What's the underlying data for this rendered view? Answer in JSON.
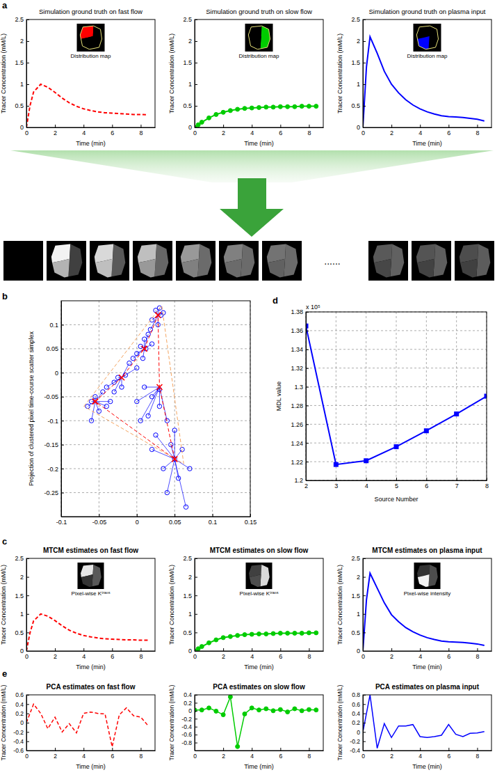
{
  "chart_data": [
    {
      "type": "line",
      "panel_label": "a",
      "title": "Simulation ground truth on fast flow",
      "inset_label": "Distribution map",
      "x_label": "Time (min)",
      "y_label": "Tracer Concentration (mM/L)",
      "x": [
        0,
        0.25,
        0.5,
        1,
        1.5,
        2,
        2.5,
        3,
        3.5,
        4,
        4.5,
        5,
        5.5,
        6,
        6.5,
        7,
        7.5,
        8,
        8.5
      ],
      "xlim": [
        0,
        9
      ],
      "xticks": [
        0,
        2,
        4,
        6,
        8
      ],
      "ylim": [
        0,
        2.5
      ],
      "yticks": [
        0,
        0.5,
        1,
        1.5,
        2,
        2.5
      ],
      "series": [
        {
          "color": "#ff0000",
          "line_style": "dashed",
          "values": [
            0,
            0.5,
            0.82,
            1.0,
            0.93,
            0.81,
            0.68,
            0.57,
            0.49,
            0.43,
            0.39,
            0.36,
            0.34,
            0.33,
            0.32,
            0.31,
            0.3,
            0.3,
            0.29
          ]
        }
      ]
    },
    {
      "type": "line",
      "title": "Simulation ground truth on slow flow",
      "inset_label": "Distribution map",
      "x_label": "Time (min)",
      "y_label": "Tracer Concentration (mM/L)",
      "x": [
        0,
        0.25,
        0.5,
        1,
        1.5,
        2,
        2.5,
        3,
        3.5,
        4,
        4.5,
        5,
        5.5,
        6,
        6.5,
        7,
        7.5,
        8,
        8.5
      ],
      "xlim": [
        0,
        9
      ],
      "xticks": [
        0,
        2,
        4,
        6,
        8
      ],
      "ylim": [
        0,
        2.5
      ],
      "yticks": [
        0,
        0.5,
        1,
        1.5,
        2,
        2.5
      ],
      "series": [
        {
          "color": "#00cc00",
          "line_style": "solid",
          "marker": "circle",
          "values": [
            0,
            0.06,
            0.12,
            0.22,
            0.3,
            0.35,
            0.39,
            0.42,
            0.44,
            0.45,
            0.46,
            0.47,
            0.47,
            0.48,
            0.48,
            0.48,
            0.49,
            0.49,
            0.49
          ]
        }
      ]
    },
    {
      "type": "line",
      "title": "Simulation ground truth on plasma input",
      "inset_label": "Distribution map",
      "x_label": "Time (min)",
      "y_label": "Tracer Concentration (mM/L)",
      "x": [
        0,
        0.25,
        0.5,
        1,
        1.5,
        2,
        2.5,
        3,
        3.5,
        4,
        4.5,
        5,
        5.5,
        6,
        6.5,
        7,
        7.5,
        8,
        8.5
      ],
      "xlim": [
        0,
        9
      ],
      "xticks": [
        0,
        2,
        4,
        6,
        8
      ],
      "ylim": [
        0,
        2.5
      ],
      "yticks": [
        0,
        0.5,
        1,
        1.5,
        2,
        2.5
      ],
      "series": [
        {
          "color": "#0000ff",
          "line_style": "solid",
          "values": [
            0,
            1.4,
            2.1,
            1.72,
            1.3,
            1.0,
            0.8,
            0.64,
            0.52,
            0.43,
            0.36,
            0.31,
            0.27,
            0.25,
            0.24,
            0.23,
            0.21,
            0.19,
            0.15
          ]
        }
      ]
    },
    {
      "type": "scatter",
      "panel_label": "b",
      "y_label": "Projection of clustered pixel time-course scatter simplex",
      "xlim": [
        -0.1,
        0.15
      ],
      "xticks": [
        -0.1,
        -0.05,
        0,
        0.05,
        0.1,
        0.15
      ],
      "ylim": [
        -0.3,
        0.15
      ],
      "yticks": [
        -0.25,
        -0.2,
        -0.15,
        -0.1,
        -0.05,
        0,
        0.05,
        0.1
      ],
      "grid": true,
      "series": [
        {
          "type": "scatter",
          "color": "#0000ff",
          "marker": "open_circle",
          "x": [
            0.03,
            0.025,
            0.032,
            0.02,
            0.028,
            0.015,
            0.01,
            0.005,
            0.012,
            0,
            -0.005,
            0.008,
            0.02,
            0.035,
            0.018,
            -0.01,
            0,
            -0.06,
            -0.055,
            -0.065,
            -0.045,
            -0.04,
            -0.03,
            -0.025,
            -0.05,
            -0.06,
            -0.035,
            -0.02,
            -0.015,
            -0.04,
            -0.03,
            0.01,
            0.02,
            0.03,
            0,
            0.015,
            0.04,
            0.05,
            0.045,
            0.05,
            0.06,
            0.035,
            0.055,
            0.07,
            0.065,
            0.04,
            0.025,
            0.005,
            0.03,
            0.02
          ],
          "values": [
            0.135,
            0.13,
            0.12,
            0.11,
            0.1,
            0.08,
            0.07,
            0.055,
            0.05,
            0.04,
            0.03,
            0.03,
            0.06,
            0.125,
            0.09,
            0.02,
            0.01,
            -0.06,
            -0.05,
            -0.07,
            -0.04,
            -0.03,
            -0.02,
            -0.01,
            -0.08,
            -0.1,
            -0.06,
            -0.03,
            -0.005,
            -0.07,
            -0.04,
            -0.03,
            -0.05,
            -0.07,
            -0.06,
            -0.09,
            -0.1,
            -0.12,
            -0.15,
            -0.18,
            -0.16,
            -0.2,
            -0.22,
            -0.2,
            -0.28,
            -0.25,
            -0.13,
            -0.1,
            -0.035,
            -0.16
          ]
        },
        {
          "type": "line",
          "color": "#f4a460",
          "line_style": "dashed",
          "x": [
            -0.07,
            0.033,
            0.062,
            -0.07
          ],
          "values": [
            -0.07,
            0.14,
            -0.19,
            -0.07
          ]
        },
        {
          "type": "line",
          "color": "#ff0000",
          "line_style": "dashed",
          "marker": "cross",
          "x": [
            -0.055,
            -0.02,
            0.01,
            0.028,
            0.03,
            0.05,
            -0.055
          ],
          "values": [
            -0.06,
            -0.01,
            0.05,
            0.12,
            -0.03,
            -0.18,
            -0.06
          ]
        }
      ]
    },
    {
      "type": "line",
      "panel_label": "d",
      "y_label": "MDL value",
      "x_label": "Source Number",
      "axis_multiplier": "x 10⁵",
      "x": [
        2,
        3,
        4,
        5,
        6,
        7,
        8
      ],
      "xlim": [
        2,
        8
      ],
      "xticks": [
        2,
        3,
        4,
        5,
        6,
        7,
        8
      ],
      "ylim": [
        1.2,
        1.38
      ],
      "yticks": [
        1.2,
        1.22,
        1.24,
        1.26,
        1.28,
        1.3,
        1.32,
        1.34,
        1.36,
        1.38
      ],
      "grid": true,
      "series": [
        {
          "color": "#0000ff",
          "line_style": "solid",
          "marker": "square",
          "values": [
            1.365,
            1.217,
            1.221,
            1.236,
            1.253,
            1.271,
            1.29
          ]
        }
      ]
    },
    {
      "type": "line",
      "panel_label": "c",
      "title": "MTCM estimates on fast flow",
      "inset_label": "Pixel-wise Kᵗʳᵃⁿˢ",
      "x_label": "Time (min)",
      "y_label": "Tracer Concentration (mM/L)",
      "x": [
        0,
        0.25,
        0.5,
        1,
        1.5,
        2,
        2.5,
        3,
        3.5,
        4,
        4.5,
        5,
        5.5,
        6,
        6.5,
        7,
        7.5,
        8,
        8.5
      ],
      "xlim": [
        0,
        9
      ],
      "xticks": [
        0,
        2,
        4,
        6,
        8
      ],
      "ylim": [
        0,
        2.5
      ],
      "yticks": [
        0,
        0.5,
        1,
        1.5,
        2,
        2.5
      ],
      "series": [
        {
          "color": "#ff0000",
          "line_style": "dashed",
          "values": [
            0,
            0.49,
            0.81,
            1.0,
            0.94,
            0.82,
            0.68,
            0.56,
            0.48,
            0.42,
            0.38,
            0.35,
            0.33,
            0.32,
            0.31,
            0.3,
            0.3,
            0.29,
            0.29
          ]
        }
      ]
    },
    {
      "type": "line",
      "title": "MTCM estimates on slow flow",
      "inset_label": "Pixel-wise Kᵗʳᵃⁿˢ",
      "x_label": "Time (min)",
      "y_label": "Tracer Concentration (mM/L)",
      "x": [
        0,
        0.25,
        0.5,
        1,
        1.5,
        2,
        2.5,
        3,
        3.5,
        4,
        4.5,
        5,
        5.5,
        6,
        6.5,
        7,
        7.5,
        8,
        8.5
      ],
      "xlim": [
        0,
        9
      ],
      "xticks": [
        0,
        2,
        4,
        6,
        8
      ],
      "ylim": [
        0,
        2.5
      ],
      "yticks": [
        0,
        0.5,
        1,
        1.5,
        2,
        2.5
      ],
      "series": [
        {
          "color": "#00cc00",
          "line_style": "solid",
          "marker": "circle",
          "values": [
            0,
            0.06,
            0.12,
            0.22,
            0.3,
            0.36,
            0.39,
            0.42,
            0.44,
            0.45,
            0.46,
            0.46,
            0.47,
            0.48,
            0.48,
            0.48,
            0.48,
            0.49,
            0.49
          ]
        }
      ]
    },
    {
      "type": "line",
      "title": "MTCM estimates on plasma input",
      "inset_label": "Pixel-wise intensity",
      "x_label": "Time (min)",
      "y_label": "Tracer Concentration (mM/L)",
      "x": [
        0,
        0.25,
        0.5,
        1,
        1.5,
        2,
        2.5,
        3,
        3.5,
        4,
        4.5,
        5,
        5.5,
        6,
        6.5,
        7,
        7.5,
        8,
        8.5
      ],
      "xlim": [
        0,
        9
      ],
      "xticks": [
        0,
        2,
        4,
        6,
        8
      ],
      "ylim": [
        0,
        2.5
      ],
      "yticks": [
        0,
        0.5,
        1,
        1.5,
        2,
        2.5
      ],
      "series": [
        {
          "color": "#0000ff",
          "line_style": "solid",
          "values": [
            0,
            1.38,
            2.1,
            1.7,
            1.3,
            0.98,
            0.79,
            0.63,
            0.52,
            0.43,
            0.36,
            0.31,
            0.27,
            0.25,
            0.24,
            0.23,
            0.21,
            0.19,
            0.15
          ]
        }
      ]
    },
    {
      "type": "line",
      "panel_label": "e",
      "title": "PCA estimates on fast flow",
      "x_label": "Time (min)",
      "y_label": "Tracer Concentration (mM/L)",
      "x": [
        0,
        0.5,
        1,
        1.5,
        2,
        2.5,
        3,
        3.5,
        4,
        4.5,
        5,
        5.5,
        6,
        6.5,
        7,
        7.5,
        8,
        8.5
      ],
      "xlim": [
        0,
        9
      ],
      "xticks": [
        0,
        2,
        4,
        6,
        8
      ],
      "ylim": [
        -0.6,
        0.6
      ],
      "yticks": [
        -0.6,
        -0.4,
        -0.2,
        0,
        0.2,
        0.4,
        0.6
      ],
      "series": [
        {
          "color": "#ff0000",
          "line_style": "dashed",
          "values": [
            0,
            0.4,
            0.2,
            -0.13,
            0.12,
            -0.2,
            -0.02,
            -0.22,
            0.2,
            0.23,
            0.2,
            0.19,
            -0.52,
            0.17,
            0.32,
            0.15,
            0.12,
            -0.06
          ]
        }
      ]
    },
    {
      "type": "line",
      "title": "PCA estimates on slow flow",
      "x_label": "Time (min)",
      "y_label": "Tracer Concentration (mM/L)",
      "x": [
        0,
        0.5,
        1,
        1.5,
        2,
        2.5,
        3,
        3.5,
        4,
        4.5,
        5,
        5.5,
        6,
        6.5,
        7,
        7.5,
        8,
        8.5
      ],
      "xlim": [
        0,
        9
      ],
      "xticks": [
        0,
        2,
        4,
        6,
        8
      ],
      "ylim": [
        -1,
        0.4
      ],
      "yticks": [
        -0.8,
        -0.6,
        -0.4,
        -0.2,
        0,
        0.2,
        0.4
      ],
      "series": [
        {
          "color": "#00cc00",
          "line_style": "solid",
          "marker": "circle",
          "values": [
            0.02,
            0.02,
            0.07,
            -0.01,
            -0.1,
            0.35,
            -0.9,
            -0.08,
            0.07,
            0.02,
            0.05,
            0,
            0.03,
            -0.03,
            0.05,
            0,
            0.03,
            0.02
          ]
        }
      ]
    },
    {
      "type": "line",
      "title": "PCA estimates on plasma input",
      "x_label": "Time (min)",
      "y_label": "Tracer Concentration (mM/L)",
      "x": [
        0,
        0.5,
        1,
        1.5,
        2,
        2.5,
        3,
        3.5,
        4,
        4.5,
        5,
        5.5,
        6,
        6.5,
        7,
        7.5,
        8,
        8.5
      ],
      "xlim": [
        0,
        9
      ],
      "xticks": [
        0,
        2,
        4,
        6,
        8
      ],
      "ylim": [
        -0.4,
        0.8
      ],
      "yticks": [
        -0.4,
        -0.2,
        0,
        0.2,
        0.4,
        0.6,
        0.8
      ],
      "series": [
        {
          "color": "#0000ff",
          "line_style": "solid",
          "values": [
            0,
            0.8,
            -0.35,
            0.18,
            -0.12,
            0.13,
            0.13,
            0.16,
            -0.1,
            -0.12,
            -0.1,
            -0.07,
            0.16,
            -0.05,
            -0.1,
            -0.03,
            -0.02,
            0.01
          ]
        }
      ]
    }
  ],
  "image_strip": {
    "ellipsis": "......"
  }
}
